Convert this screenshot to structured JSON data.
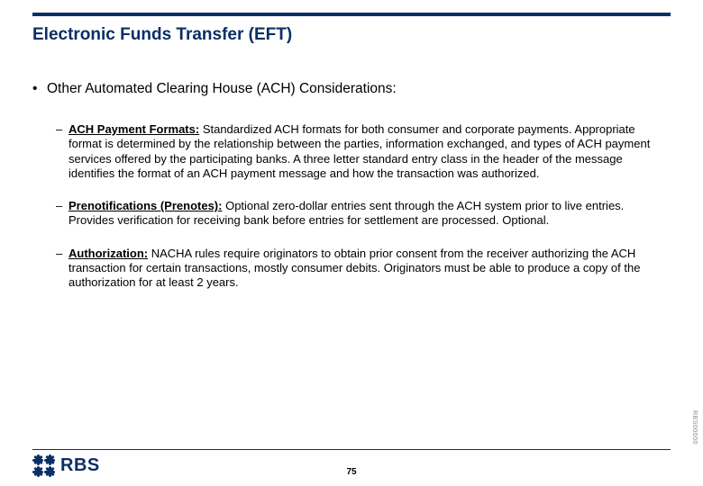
{
  "colors": {
    "brand": "#0a2f66",
    "text": "#000000",
    "background": "#ffffff",
    "side_code": "#888888"
  },
  "typography": {
    "title_fontsize_pt": 19,
    "lvl1_fontsize_pt": 15.5,
    "lvl2_fontsize_pt": 13,
    "logo_fontsize_pt": 20,
    "pagenum_fontsize_pt": 10
  },
  "title": "Electronic Funds Transfer (EFT)",
  "lvl1_heading": "Other Automated Clearing House (ACH) Considerations:",
  "items": [
    {
      "label": "ACH Payment Formats:",
      "body": " Standardized ACH formats for both consumer and corporate payments. Appropriate format is determined by the relationship between the parties, information exchanged, and types of ACH payment services offered by the participating banks. A three letter standard entry class in the header of the message identifies the format of an ACH payment message and how the transaction was authorized."
    },
    {
      "label": "Prenotifications (Prenotes):",
      "body": " Optional zero-dollar entries sent through the ACH system prior to live entries. Provides verification for receiving bank before entries for settlement are processed. Optional."
    },
    {
      "label": "Authorization:",
      "body": " NACHA rules require originators to obtain prior consent from the receiver authorizing the ACH transaction for certain transactions, mostly consumer debits. Originators must be able to produce a copy of the authorization for at least 2 years."
    }
  ],
  "logo_text": "RBS",
  "page_number": "75",
  "side_code": "RBS00000"
}
